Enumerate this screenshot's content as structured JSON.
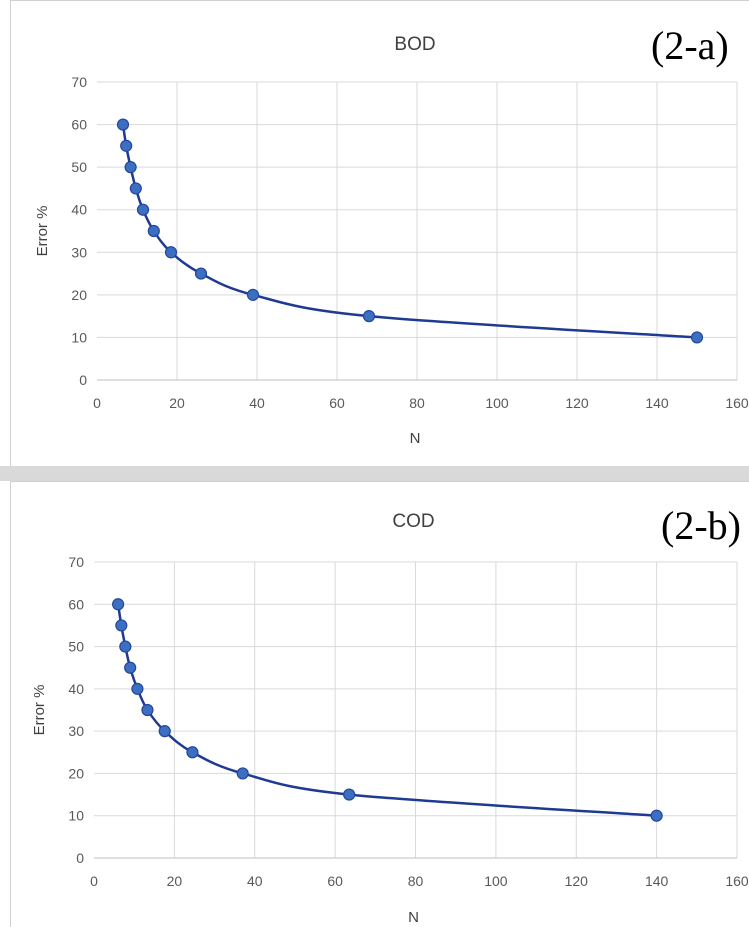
{
  "chart_data": [
    {
      "type": "line",
      "title": "BOD",
      "tag": "(2-a)",
      "xlabel": "N",
      "ylabel": "Error %",
      "xlim": [
        0,
        160
      ],
      "ylim": [
        0,
        70
      ],
      "xticks": [
        0,
        20,
        40,
        60,
        80,
        100,
        120,
        140,
        160
      ],
      "yticks": [
        0,
        10,
        20,
        30,
        40,
        50,
        60,
        70
      ],
      "grid": true,
      "series": [
        {
          "x": [
            6.5,
            7.3,
            8.4,
            9.7,
            11.5,
            14.2,
            18.5,
            26,
            39,
            68,
            150
          ],
          "y": [
            60,
            55,
            50,
            45,
            40,
            35,
            30,
            25,
            20,
            15,
            10
          ]
        }
      ]
    },
    {
      "type": "line",
      "title": "COD",
      "tag": "(2-b)",
      "xlabel": "N",
      "ylabel": "Error %",
      "xlim": [
        0,
        160
      ],
      "ylim": [
        0,
        70
      ],
      "xticks": [
        0,
        20,
        40,
        60,
        80,
        100,
        120,
        140,
        160
      ],
      "yticks": [
        0,
        10,
        20,
        30,
        40,
        50,
        60,
        70
      ],
      "grid": true,
      "series": [
        {
          "x": [
            6,
            6.8,
            7.8,
            9,
            10.8,
            13.3,
            17.6,
            24.5,
            37,
            63.5,
            140
          ],
          "y": [
            60,
            55,
            50,
            45,
            40,
            35,
            30,
            25,
            20,
            15,
            10
          ]
        }
      ]
    }
  ]
}
